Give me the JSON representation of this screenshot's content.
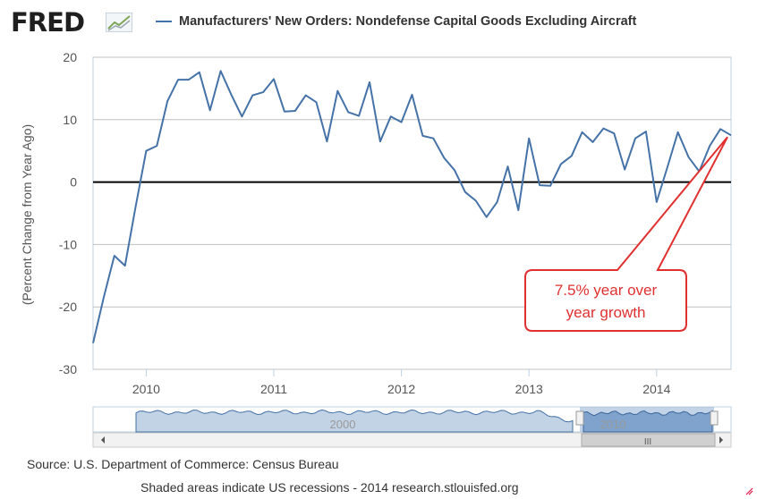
{
  "brand": {
    "logo_text": "FRED",
    "logo_icon": "chart-line-icon"
  },
  "chart_data": {
    "type": "line",
    "title": "Manufacturers' New Orders: Nondefense Capital Goods Excluding Aircraft",
    "ylabel": "(Percent Change from Year Ago)",
    "xlabel": "",
    "ylim": [
      -30,
      20
    ],
    "yticks": [
      -30,
      -20,
      -10,
      0,
      10,
      20
    ],
    "xticks": [
      "2010",
      "2011",
      "2012",
      "2013",
      "2014"
    ],
    "xlim": [
      "2009-08",
      "2014-08"
    ],
    "grid": "horizontal",
    "legend_position": "top",
    "series": [
      {
        "name": "Manufacturers' New Orders: Nondefense Capital Goods Excluding Aircraft",
        "color": "#4572a7",
        "x": [
          "2009-08",
          "2009-09",
          "2009-10",
          "2009-11",
          "2009-12",
          "2010-01",
          "2010-02",
          "2010-03",
          "2010-04",
          "2010-05",
          "2010-06",
          "2010-07",
          "2010-08",
          "2010-09",
          "2010-10",
          "2010-11",
          "2010-12",
          "2011-01",
          "2011-02",
          "2011-03",
          "2011-04",
          "2011-05",
          "2011-06",
          "2011-07",
          "2011-08",
          "2011-09",
          "2011-10",
          "2011-11",
          "2011-12",
          "2012-01",
          "2012-02",
          "2012-03",
          "2012-04",
          "2012-05",
          "2012-06",
          "2012-07",
          "2012-08",
          "2012-09",
          "2012-10",
          "2012-11",
          "2012-12",
          "2013-01",
          "2013-02",
          "2013-03",
          "2013-04",
          "2013-05",
          "2013-06",
          "2013-07",
          "2013-08",
          "2013-09",
          "2013-10",
          "2013-11",
          "2013-12",
          "2014-01",
          "2014-02",
          "2014-03",
          "2014-04",
          "2014-05",
          "2014-06",
          "2014-07",
          "2014-08"
        ],
        "y": [
          -25.8,
          -18.5,
          -11.8,
          -13.4,
          -4.0,
          5.0,
          5.8,
          13.0,
          16.4,
          16.4,
          17.6,
          11.5,
          17.8,
          14.0,
          10.5,
          13.9,
          14.4,
          16.5,
          11.3,
          11.4,
          13.9,
          12.8,
          6.5,
          14.6,
          11.2,
          10.6,
          16.0,
          6.5,
          10.5,
          9.6,
          14.0,
          7.4,
          7.0,
          3.9,
          1.9,
          -1.6,
          -3.0,
          -5.6,
          -3.2,
          2.5,
          -4.5,
          7.0,
          -0.5,
          -0.6,
          2.9,
          4.2,
          8.0,
          6.4,
          8.6,
          7.8,
          2.0,
          7.0,
          8.1,
          -3.2,
          2.3,
          8.0,
          4.0,
          1.7,
          5.8,
          8.5,
          7.5
        ]
      }
    ],
    "reference_line": {
      "y": 0,
      "color": "#000000"
    },
    "annotation": {
      "text": "7.5% year over year growth",
      "line1": "7.5% year over",
      "line2": "year growth",
      "color": "#e03030"
    },
    "navigator": {
      "label_a": "2000",
      "label_b": "2010",
      "grip_label": "III"
    }
  },
  "source": "Source: U.S. Department of Commerce: Census Bureau",
  "footer": "Shaded areas indicate US recessions - 2014 research.stlouisfed.org"
}
